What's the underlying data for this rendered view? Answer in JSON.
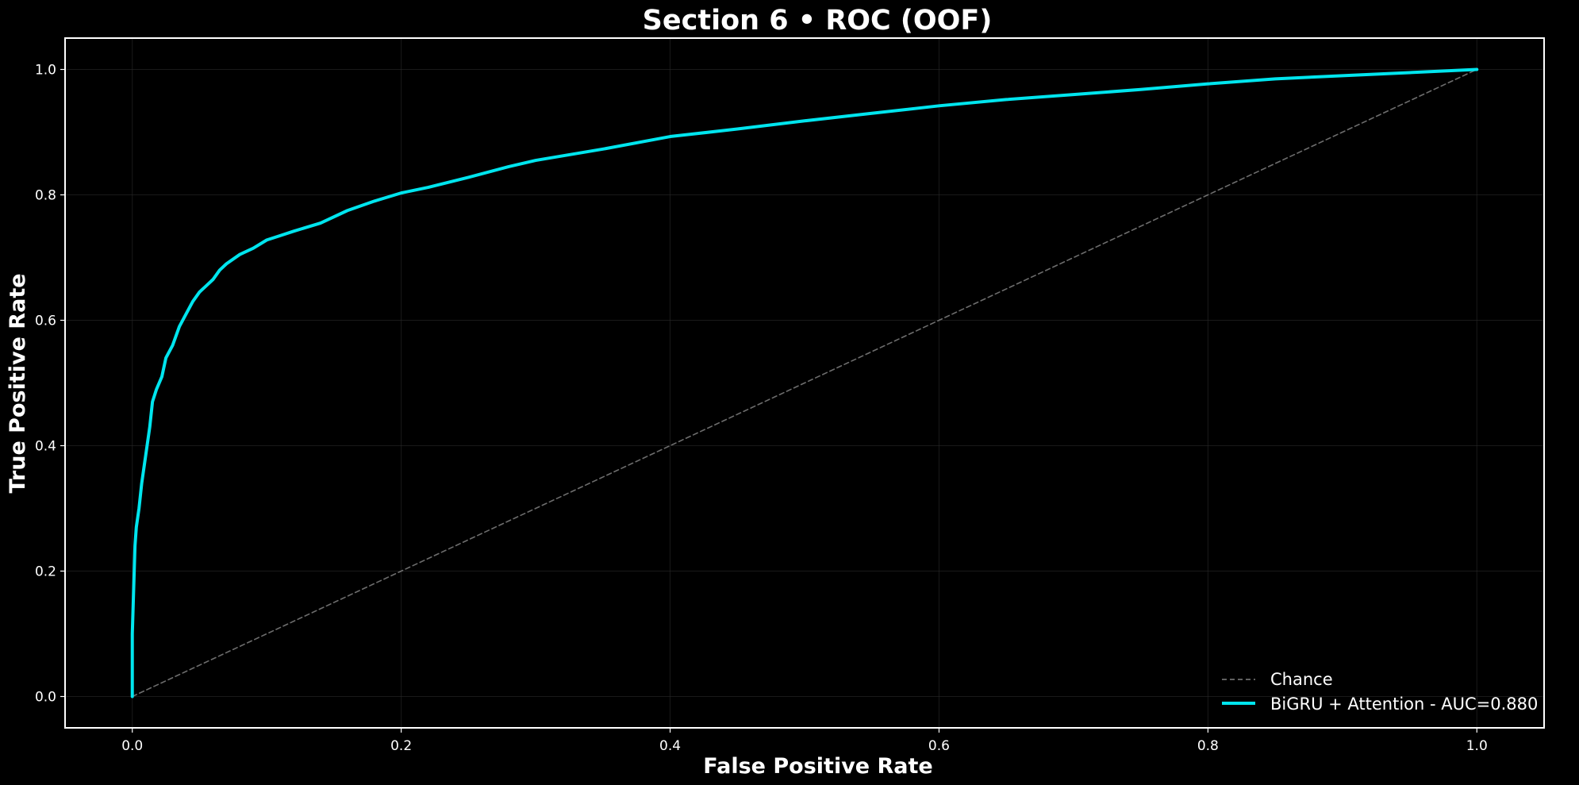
{
  "chart_data": {
    "type": "line",
    "title": "Section 6 • ROC (OOF)",
    "xlabel": "False Positive Rate",
    "ylabel": "True Positive Rate",
    "xlim": [
      -0.05,
      1.05
    ],
    "ylim": [
      -0.05,
      1.05
    ],
    "xticks": [
      "0.0",
      "0.2",
      "0.4",
      "0.6",
      "0.8",
      "1.0"
    ],
    "yticks": [
      "0.0",
      "0.2",
      "0.4",
      "0.6",
      "0.8",
      "1.0"
    ],
    "grid": true,
    "legend_position": "lower-right",
    "background": "#000000",
    "series": [
      {
        "name": "Chance",
        "color": "#808080",
        "style": "dashed",
        "x": [
          0,
          1
        ],
        "y": [
          0,
          1
        ]
      },
      {
        "name": "BiGRU + Attention - AUC=0.880",
        "color": "#00e5ee",
        "style": "solid",
        "x": [
          0,
          0.0,
          0.002,
          0.003,
          0.005,
          0.007,
          0.009,
          0.011,
          0.013,
          0.015,
          0.018,
          0.022,
          0.025,
          0.03,
          0.035,
          0.04,
          0.045,
          0.05,
          0.055,
          0.06,
          0.065,
          0.07,
          0.08,
          0.09,
          0.1,
          0.11,
          0.12,
          0.14,
          0.16,
          0.18,
          0.2,
          0.22,
          0.25,
          0.28,
          0.3,
          0.35,
          0.4,
          0.45,
          0.5,
          0.55,
          0.6,
          0.65,
          0.7,
          0.75,
          0.8,
          0.85,
          0.9,
          0.95,
          1.0
        ],
        "y": [
          0,
          0.1,
          0.24,
          0.27,
          0.3,
          0.34,
          0.37,
          0.4,
          0.43,
          0.47,
          0.49,
          0.51,
          0.54,
          0.56,
          0.59,
          0.61,
          0.63,
          0.645,
          0.655,
          0.665,
          0.68,
          0.69,
          0.705,
          0.715,
          0.728,
          0.735,
          0.742,
          0.755,
          0.775,
          0.79,
          0.803,
          0.812,
          0.828,
          0.845,
          0.855,
          0.873,
          0.893,
          0.905,
          0.918,
          0.93,
          0.942,
          0.952,
          0.96,
          0.968,
          0.977,
          0.985,
          0.99,
          0.995,
          1.0
        ]
      }
    ]
  }
}
